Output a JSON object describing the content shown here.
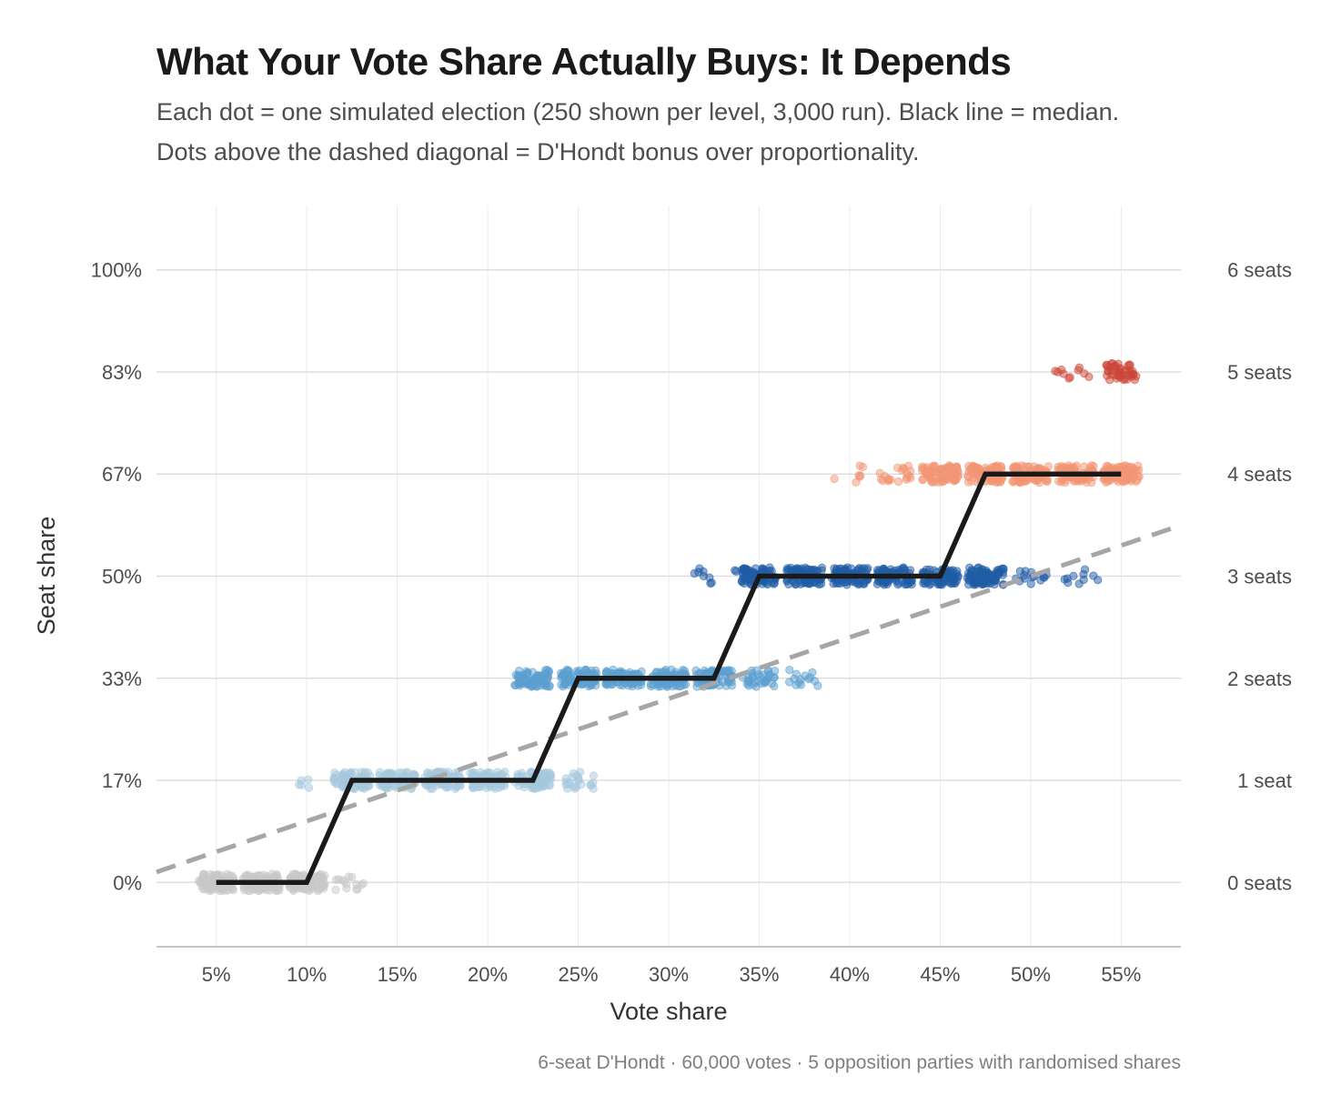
{
  "title": "What Your Vote Share Actually Buys: It Depends",
  "subtitle_lines": [
    "Each dot = one simulated election (250 shown per level, 3,000 run). Black line = median.",
    "Dots above the dashed diagonal = D'Hondt bonus over proportionality."
  ],
  "caption": "6-seat D'Hondt · 60,000 votes · 5 opposition parties with randomised shares",
  "chart_data": {
    "type": "scatter",
    "xlabel": "Vote share",
    "ylabel": "Seat share",
    "xlim": [
      1.7,
      58.3
    ],
    "ylim": [
      -10.5,
      110.5
    ],
    "x_ticks": [
      5,
      10,
      15,
      20,
      25,
      30,
      35,
      40,
      45,
      50,
      55
    ],
    "x_tick_labels": [
      "5%",
      "10%",
      "15%",
      "20%",
      "25%",
      "30%",
      "35%",
      "40%",
      "45%",
      "50%",
      "55%"
    ],
    "y_ticks": [
      0,
      16.67,
      33.33,
      50,
      66.67,
      83.33,
      100
    ],
    "y_tick_labels": [
      "0%",
      "17%",
      "33%",
      "50%",
      "67%",
      "83%",
      "100%"
    ],
    "y2_tick_labels": [
      "0 seats",
      "1 seat",
      "2 seats",
      "3 seats",
      "4 seats",
      "5 seats",
      "6 seats"
    ],
    "grid": true,
    "seat_colors": [
      "#c8c8c8",
      "#a6c8dd",
      "#5b9fd0",
      "#1f5ca6",
      "#f29674",
      "#cc4538",
      "#000000"
    ],
    "jitter_clusters": [
      {
        "seat_share": 0,
        "x_centers": [
          5,
          7.5,
          10
        ],
        "x_spread": 1.0,
        "count": 90
      },
      {
        "seat_share": 0,
        "x_centers": [
          12.5
        ],
        "x_spread": 0.9,
        "count": 14
      },
      {
        "seat_share": 16.67,
        "x_centers": [
          12.5,
          15,
          17.5,
          20,
          22.5
        ],
        "x_spread": 1.0,
        "count": 80
      },
      {
        "seat_share": 16.67,
        "x_centers": [
          25
        ],
        "x_spread": 0.9,
        "count": 22
      },
      {
        "seat_share": 16.67,
        "x_centers": [
          9.9
        ],
        "x_spread": 0.35,
        "count": 5
      },
      {
        "seat_share": 33.33,
        "x_centers": [
          22.5,
          25,
          27.5,
          30,
          32.5
        ],
        "x_spread": 1.0,
        "count": 80
      },
      {
        "seat_share": 33.33,
        "x_centers": [
          35
        ],
        "x_spread": 0.9,
        "count": 35
      },
      {
        "seat_share": 33.33,
        "x_centers": [
          37.5
        ],
        "x_spread": 0.85,
        "count": 14
      },
      {
        "seat_share": 50,
        "x_centers": [
          32.5
        ],
        "x_spread": 1.3,
        "count": 10
      },
      {
        "seat_share": 50,
        "x_centers": [
          35,
          37.5,
          40,
          42.5,
          45,
          47.5
        ],
        "x_spread": 1.0,
        "count": 85
      },
      {
        "seat_share": 50,
        "x_centers": [
          50
        ],
        "x_spread": 0.9,
        "count": 14
      },
      {
        "seat_share": 50,
        "x_centers": [
          52.8
        ],
        "x_spread": 1.3,
        "count": 10
      },
      {
        "seat_share": 66.67,
        "x_centers": [
          40
        ],
        "x_spread": 1.1,
        "count": 7
      },
      {
        "seat_share": 66.67,
        "x_centers": [
          42.5
        ],
        "x_spread": 0.9,
        "count": 20
      },
      {
        "seat_share": 66.67,
        "x_centers": [
          45,
          47.5,
          50,
          52.5,
          55
        ],
        "x_spread": 1.0,
        "count": 85
      },
      {
        "seat_share": 83.33,
        "x_centers": [
          52.5
        ],
        "x_spread": 1.2,
        "count": 10
      },
      {
        "seat_share": 83.33,
        "x_centers": [
          55
        ],
        "x_spread": 0.85,
        "count": 45
      }
    ],
    "median_line": {
      "x": [
        5,
        10,
        12.5,
        22.5,
        25,
        32.5,
        35,
        45,
        47.5,
        55
      ],
      "y": [
        0,
        0,
        16.67,
        16.67,
        33.33,
        33.33,
        50,
        50,
        66.67,
        66.67
      ]
    },
    "proportional_line": {
      "x": [
        1.7,
        58.3
      ],
      "y": [
        1.7,
        58.3
      ]
    }
  }
}
